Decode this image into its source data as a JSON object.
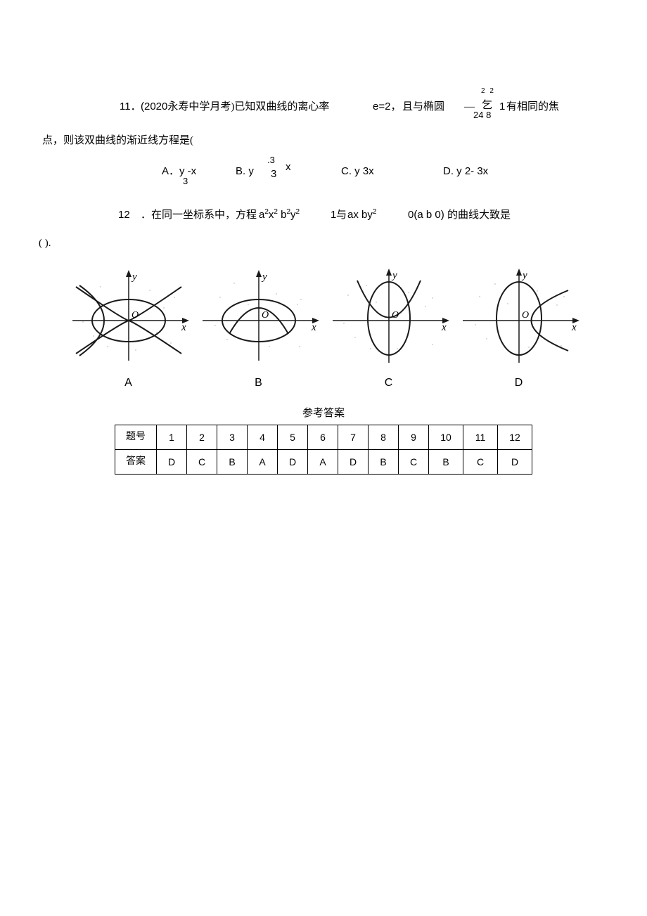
{
  "q11": {
    "number": "11．",
    "source_prefix": "(2020",
    "source_text": "永寿中学月考)已知双曲线的离心率",
    "e_expr": "e=2，",
    "text_and": "且与椭圆",
    "dash": "―",
    "yi": "乞",
    "frac_top": "2 2",
    "frac_bot": "24    8",
    "one": "1",
    "text_same": "有相同的焦",
    "line2": "点，则该双曲线的渐近线方程是(",
    "optA": "A．y -x",
    "optA_sub": "3",
    "optB": "B. y",
    "optB_top": ".3",
    "optB_mid": "3",
    "optB_x": "x",
    "optC": "C. y 3x",
    "optD": "D. y 2- 3x"
  },
  "q12": {
    "number": "12",
    "text1": "．在同一坐标系中，方程",
    "eq1_html": "a<sup>2</sup>x<sup>2</sup> b<sup>2</sup>y<sup>2</sup>",
    "one": "1",
    "yu": "与",
    "eq2_html": "ax by<sup>2</sup>",
    "zero_cond": "0(a b 0)",
    "text2": "的曲线大致是",
    "paren": "( )."
  },
  "figures": {
    "labels": [
      "A",
      "B",
      "C",
      "D"
    ],
    "axis_color": "#1a1a1a",
    "curve_color": "#1a1a1a",
    "noise_color": "#b0b0b0",
    "y_label": "y",
    "x_label": "x",
    "origin_label": "O",
    "panels": [
      {
        "ellipse_rx": 52,
        "ellipse_ry": 30,
        "parabola": "down-open-left",
        "type": "A"
      },
      {
        "ellipse_rx": 52,
        "ellipse_ry": 30,
        "parabola": "up-open",
        "type": "B"
      },
      {
        "ellipse_rx": 30,
        "ellipse_ry": 52,
        "parabola": "down-open-narrow",
        "type": "C"
      },
      {
        "ellipse_rx": 32,
        "ellipse_ry": 52,
        "parabola": "side-curve",
        "type": "D"
      }
    ]
  },
  "answers": {
    "title": "参考答案",
    "header_label": "题号",
    "row_label": "答案",
    "numbers": [
      "1",
      "2",
      "3",
      "4",
      "5",
      "6",
      "7",
      "8",
      "9",
      "10",
      "11",
      "12"
    ],
    "values": [
      "D",
      "C",
      "B",
      "A",
      "D",
      "A",
      "D",
      "B",
      "C",
      "B",
      "C",
      "D"
    ]
  },
  "style": {
    "background": "#ffffff",
    "text_color": "#000000",
    "font_size_body": 15,
    "table_border_color": "#000000"
  }
}
